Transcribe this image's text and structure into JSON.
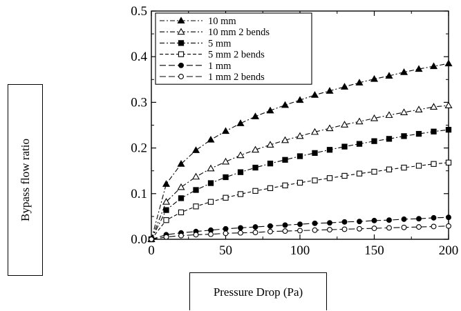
{
  "chart_data": {
    "type": "line",
    "xlabel": "Pressure Drop (Pa)",
    "ylabel": "Bypass flow ratio",
    "xlim": [
      0,
      200
    ],
    "ylim": [
      0,
      0.5
    ],
    "x_ticks": [
      "0",
      "50",
      "100",
      "150",
      "200"
    ],
    "y_ticks": [
      "0.0",
      "0.1",
      "0.2",
      "0.3",
      "0.4",
      "0.5"
    ],
    "x_tick_values": [
      0,
      50,
      100,
      150,
      200
    ],
    "y_tick_values": [
      0,
      0.1,
      0.2,
      0.3,
      0.4,
      0.5
    ],
    "grid": false,
    "legend_position": "top-left",
    "x": [
      0,
      10,
      20,
      30,
      40,
      50,
      60,
      70,
      80,
      90,
      100,
      110,
      120,
      130,
      140,
      150,
      160,
      170,
      180,
      190,
      200
    ],
    "series": [
      {
        "name": "10 mm",
        "marker": "filled-triangle",
        "dash": "dashdot",
        "values": [
          0,
          0.121,
          0.165,
          0.195,
          0.218,
          0.237,
          0.254,
          0.269,
          0.282,
          0.294,
          0.305,
          0.316,
          0.325,
          0.334,
          0.343,
          0.351,
          0.358,
          0.366,
          0.373,
          0.379,
          0.385
        ]
      },
      {
        "name": "10 mm 2 bends",
        "marker": "open-triangle",
        "dash": "dashdot",
        "values": [
          0,
          0.082,
          0.114,
          0.137,
          0.155,
          0.17,
          0.184,
          0.196,
          0.207,
          0.217,
          0.226,
          0.235,
          0.243,
          0.251,
          0.258,
          0.265,
          0.272,
          0.278,
          0.284,
          0.29,
          0.293
        ]
      },
      {
        "name": "5 mm",
        "marker": "filled-square",
        "dash": "dashdot",
        "values": [
          0,
          0.064,
          0.09,
          0.108,
          0.123,
          0.136,
          0.147,
          0.157,
          0.166,
          0.174,
          0.182,
          0.189,
          0.196,
          0.203,
          0.209,
          0.215,
          0.22,
          0.226,
          0.231,
          0.236,
          0.24
        ]
      },
      {
        "name": "5 mm 2 bends",
        "marker": "open-square",
        "dash": "dashed",
        "values": [
          0,
          0.042,
          0.059,
          0.072,
          0.082,
          0.091,
          0.099,
          0.106,
          0.112,
          0.118,
          0.124,
          0.129,
          0.134,
          0.139,
          0.144,
          0.148,
          0.153,
          0.157,
          0.161,
          0.165,
          0.168
        ]
      },
      {
        "name": "1 mm",
        "marker": "filled-circle",
        "dash": "longdash",
        "values": [
          0,
          0.01,
          0.014,
          0.017,
          0.02,
          0.023,
          0.025,
          0.027,
          0.029,
          0.031,
          0.033,
          0.035,
          0.036,
          0.038,
          0.039,
          0.041,
          0.042,
          0.044,
          0.045,
          0.047,
          0.048
        ]
      },
      {
        "name": "1 mm 2 bends",
        "marker": "open-circle",
        "dash": "longdash",
        "values": [
          0,
          0.005,
          0.008,
          0.01,
          0.011,
          0.013,
          0.014,
          0.015,
          0.017,
          0.018,
          0.019,
          0.02,
          0.021,
          0.022,
          0.023,
          0.024,
          0.025,
          0.026,
          0.027,
          0.028,
          0.029
        ]
      }
    ]
  }
}
